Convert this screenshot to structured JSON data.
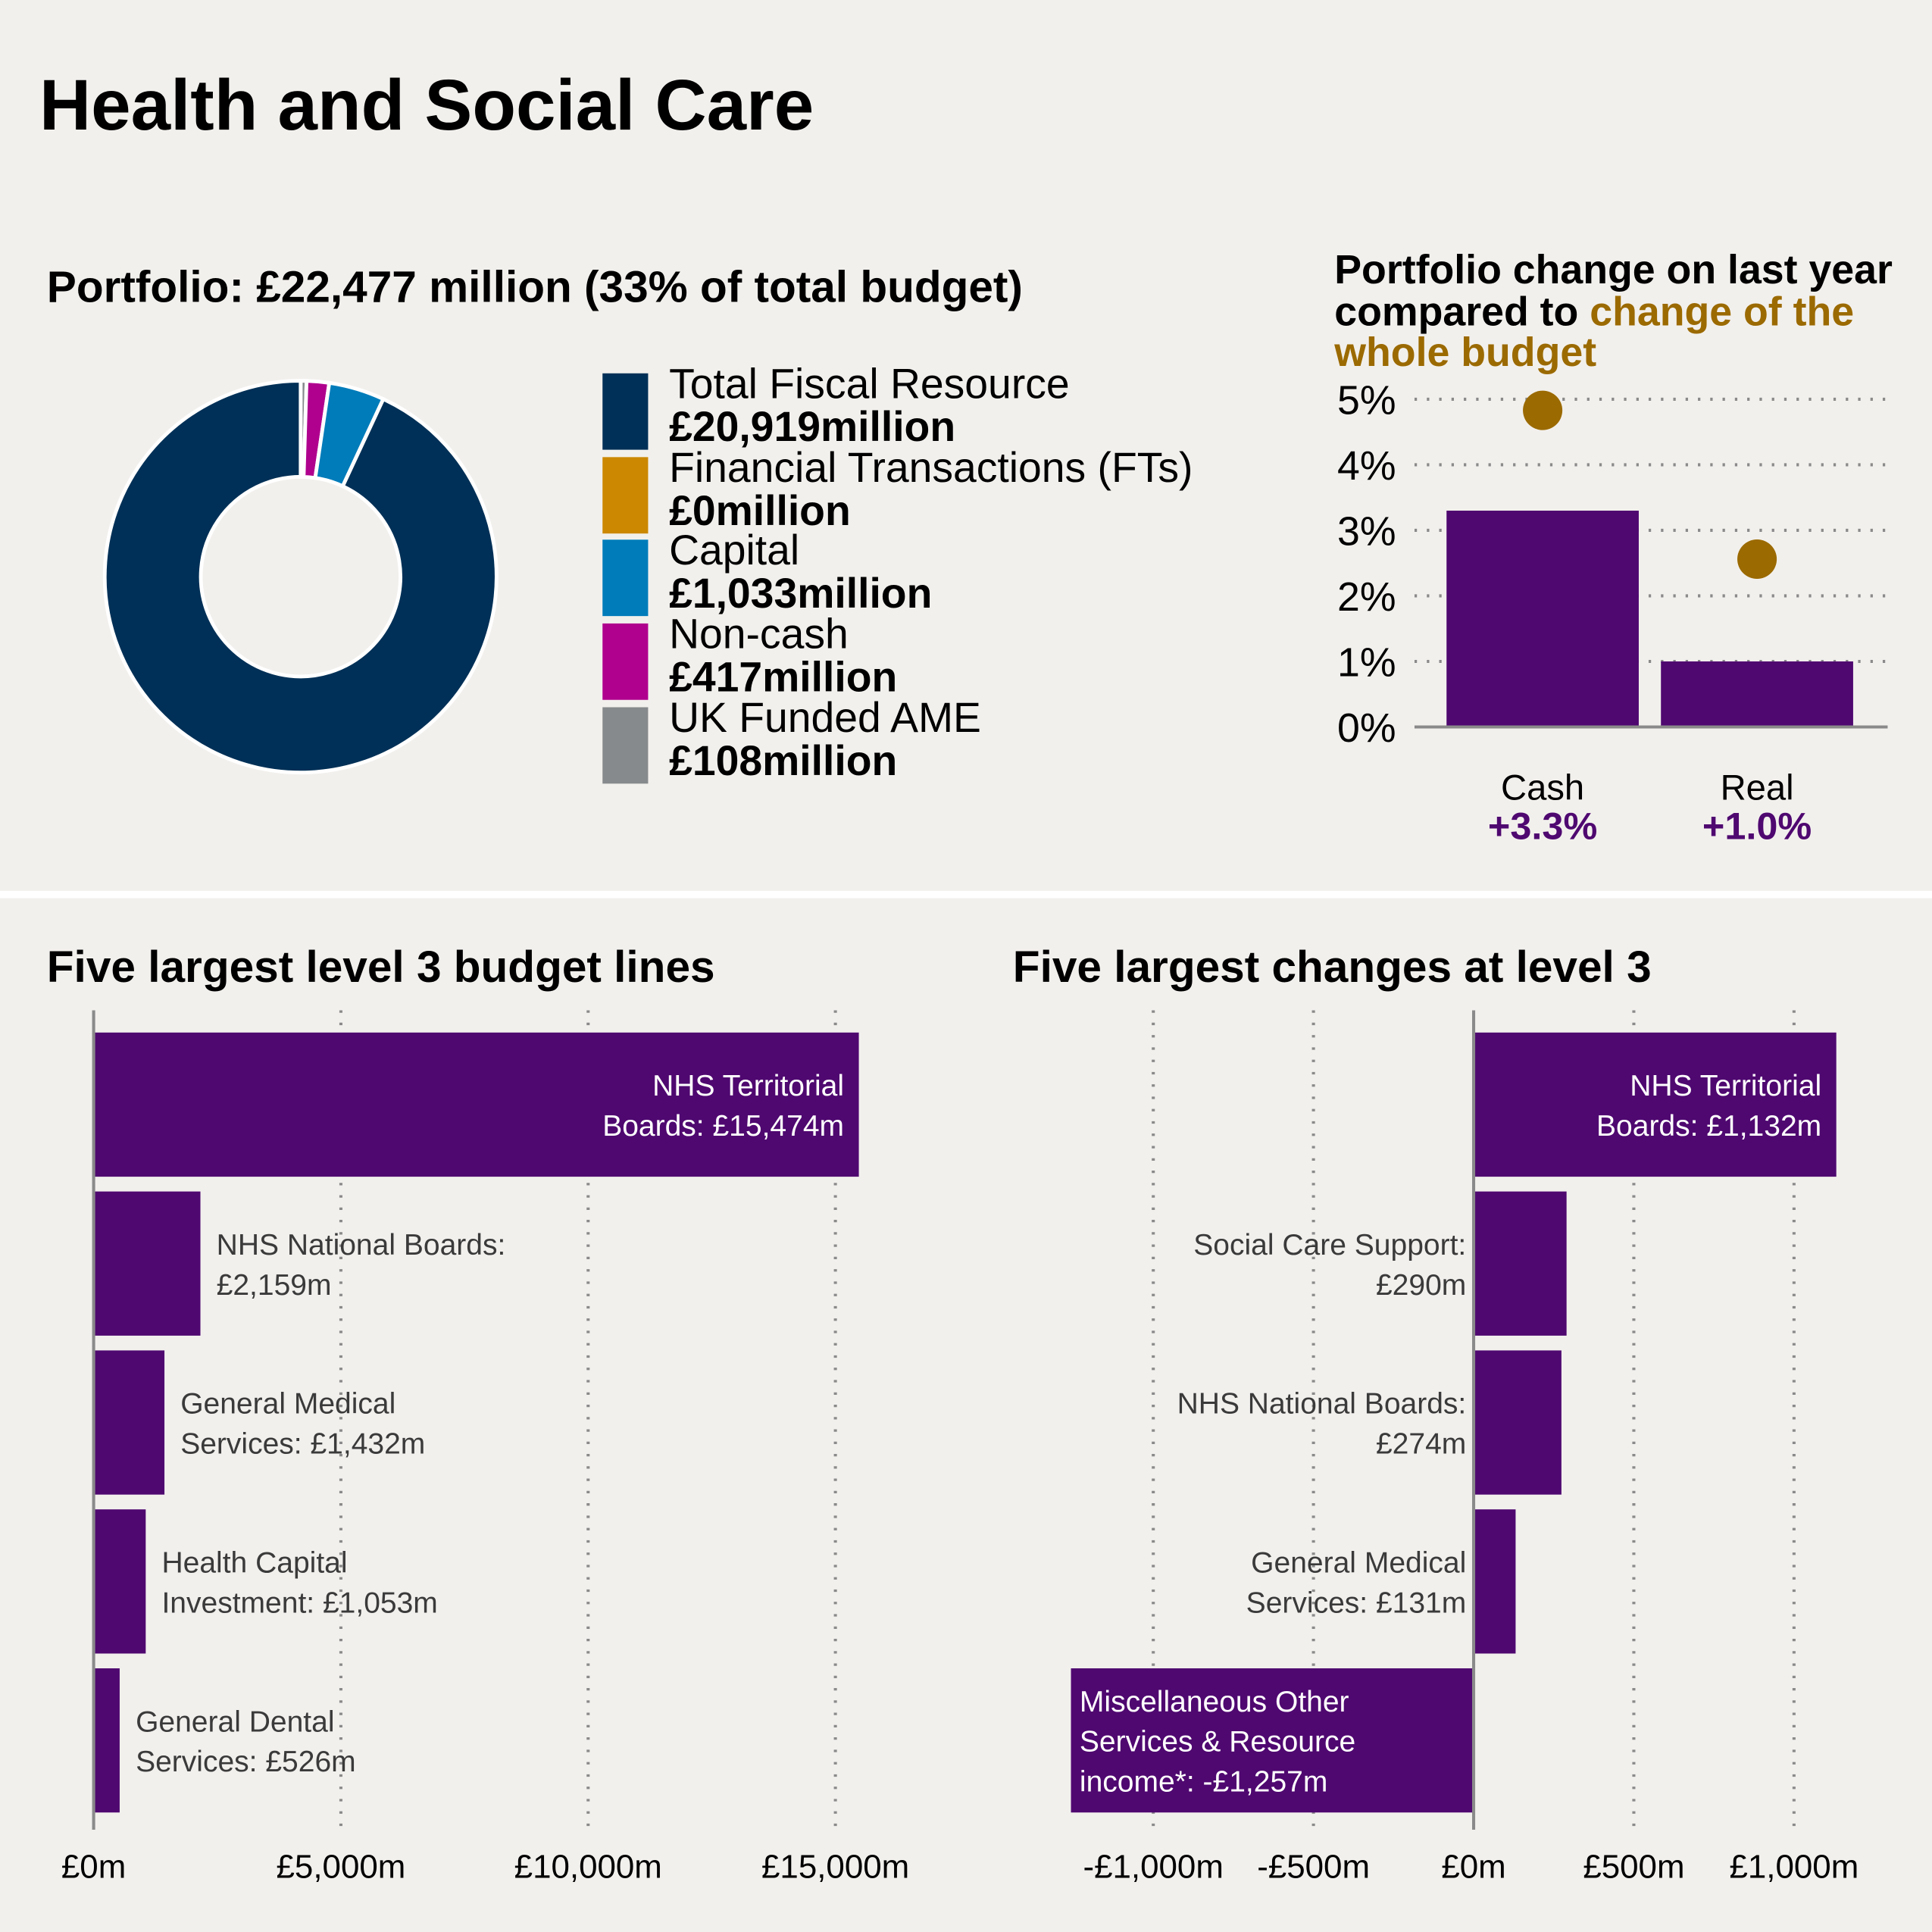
{
  "title": "Health and Social Care",
  "colors": {
    "purple": "#4f0870",
    "gold": "#9b6a00",
    "navy": "#003057",
    "orange": "#cc8800",
    "blue": "#007cba",
    "magenta": "#b0008e",
    "gray": "#878a8c",
    "background": "#f2f0ed"
  },
  "portfolio": {
    "heading": "Portfolio: £22,477 million (33% of total budget)",
    "chart_data": {
      "type": "pie",
      "donut": true,
      "slices": [
        {
          "label": "Total Fiscal Resource",
          "value": 20919,
          "value_label": "£20,919million",
          "color": "#003057"
        },
        {
          "label": "Financial Transactions (FTs)",
          "value": 0,
          "value_label": "£0million",
          "color": "#cc8800"
        },
        {
          "label": "Capital",
          "value": 1033,
          "value_label": "£1,033million",
          "color": "#007cba"
        },
        {
          "label": "Non-cash",
          "value": 417,
          "value_label": "£417million",
          "color": "#b0008e"
        },
        {
          "label": "UK Funded AME",
          "value": 108,
          "value_label": "£108million",
          "color": "#878a8c"
        }
      ]
    }
  },
  "change": {
    "heading_1": "Portfolio change on last year compared to ",
    "heading_2": "change of the whole budget",
    "chart_data": {
      "type": "bar",
      "categories": [
        "Cash",
        "Real"
      ],
      "values": [
        3.3,
        1.0
      ],
      "value_labels": [
        "+3.3%",
        "+1.0%"
      ],
      "whole_budget_change": [
        4.83,
        2.56
      ],
      "yticks": [
        "0%",
        "1%",
        "2%",
        "3%",
        "4%",
        "5%"
      ],
      "ylim": [
        0,
        5
      ],
      "grid": true
    }
  },
  "largest": {
    "heading": "Five largest level 3 budget lines",
    "chart_data": {
      "type": "bar",
      "orientation": "horizontal",
      "categories": [
        "NHS Territorial Boards",
        "NHS National Boards",
        "General Medical Services",
        "Health Capital Investment",
        "General Dental Services"
      ],
      "values": [
        15474,
        2159,
        1432,
        1053,
        526
      ],
      "labels": [
        [
          "NHS Territorial",
          "Boards: £15,474m"
        ],
        [
          "NHS National Boards:",
          "£2,159m"
        ],
        [
          "General Medical",
          "Services: £1,432m"
        ],
        [
          "Health Capital",
          "Investment: £1,053m"
        ],
        [
          "General Dental",
          "Services: £526m"
        ]
      ],
      "xticks": [
        {
          "v": 0,
          "t": "£0m"
        },
        {
          "v": 5000,
          "t": "£5,000m"
        },
        {
          "v": 10000,
          "t": "£10,000m"
        },
        {
          "v": 15000,
          "t": "£15,000m"
        }
      ],
      "grid": true
    }
  },
  "changes": {
    "heading": "Five largest changes at level 3",
    "chart_data": {
      "type": "bar",
      "orientation": "horizontal",
      "categories": [
        "NHS Territorial Boards",
        "Social Care Support",
        "NHS National Boards",
        "General Medical Services",
        "Miscellaneous Other Services & Resource income*"
      ],
      "values": [
        1132,
        290,
        274,
        131,
        -1257
      ],
      "labels": [
        [
          "NHS Territorial",
          "Boards: £1,132m"
        ],
        [
          "Social Care Support:",
          "£290m"
        ],
        [
          "NHS National Boards:",
          "£274m"
        ],
        [
          "General Medical",
          "Services: £131m"
        ],
        [
          "Miscellaneous Other",
          "Services & Resource",
          "income*: -£1,257m"
        ]
      ],
      "xticks": [
        {
          "v": -1000,
          "t": "-£1,000m"
        },
        {
          "v": -500,
          "t": "-£500m"
        },
        {
          "v": 0,
          "t": "£0m"
        },
        {
          "v": 500,
          "t": "£500m"
        },
        {
          "v": 1000,
          "t": "£1,000m"
        }
      ],
      "grid": true
    }
  }
}
